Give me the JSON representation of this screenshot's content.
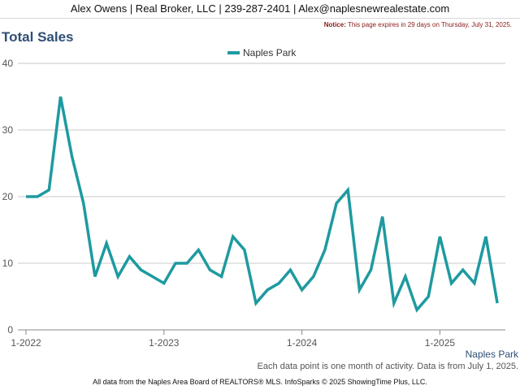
{
  "header": {
    "contact_line": "Alex Owens | Real Broker, LLC | 239-287-2401 | Alex@naplesnewrealestate.com",
    "notice_label": "Notice:",
    "notice_text": "This page expires in 29 days on Thursday, July 31, 2025."
  },
  "footer": {
    "data_note": "Each data point is one month of activity. Data is from July 1, 2025.",
    "source": "All data from the Naples Area Board of REALTORS® MLS. InfoSparks © 2025 ShowingTime Plus, LLC."
  },
  "colors": {
    "series": "#1e9aa0",
    "title": "#2f4f75",
    "grid": "#c8c8c8",
    "axis_text": "#555555"
  },
  "chart_data": {
    "type": "line",
    "title": "Total Sales",
    "xlabel": "",
    "ylabel": "",
    "ylim": [
      0,
      40
    ],
    "yticks": [
      0,
      10,
      20,
      30,
      40
    ],
    "grid": true,
    "legend_position": "top-center",
    "corner_label": "Naples Park",
    "x_tick_labels": [
      {
        "label": "1-2022",
        "index": 0
      },
      {
        "label": "1-2023",
        "index": 12
      },
      {
        "label": "1-2024",
        "index": 24
      },
      {
        "label": "1-2025",
        "index": 36
      }
    ],
    "series": [
      {
        "name": "Naples Park",
        "color": "#1e9aa0",
        "x": [
          "2022-01",
          "2022-02",
          "2022-03",
          "2022-04",
          "2022-05",
          "2022-06",
          "2022-07",
          "2022-08",
          "2022-09",
          "2022-10",
          "2022-11",
          "2022-12",
          "2023-01",
          "2023-02",
          "2023-03",
          "2023-04",
          "2023-05",
          "2023-06",
          "2023-07",
          "2023-08",
          "2023-09",
          "2023-10",
          "2023-11",
          "2023-12",
          "2024-01",
          "2024-02",
          "2024-03",
          "2024-04",
          "2024-05",
          "2024-06",
          "2024-07",
          "2024-08",
          "2024-09",
          "2024-10",
          "2024-11",
          "2024-12",
          "2025-01",
          "2025-02",
          "2025-03",
          "2025-04",
          "2025-05",
          "2025-06"
        ],
        "values": [
          20,
          20,
          21,
          35,
          26,
          19,
          8,
          13,
          8,
          11,
          9,
          8,
          7,
          10,
          10,
          12,
          9,
          8,
          14,
          12,
          4,
          6,
          7,
          9,
          6,
          8,
          12,
          19,
          21,
          6,
          9,
          17,
          4,
          8,
          3,
          5,
          14,
          7,
          9,
          7,
          14,
          4
        ]
      }
    ]
  }
}
